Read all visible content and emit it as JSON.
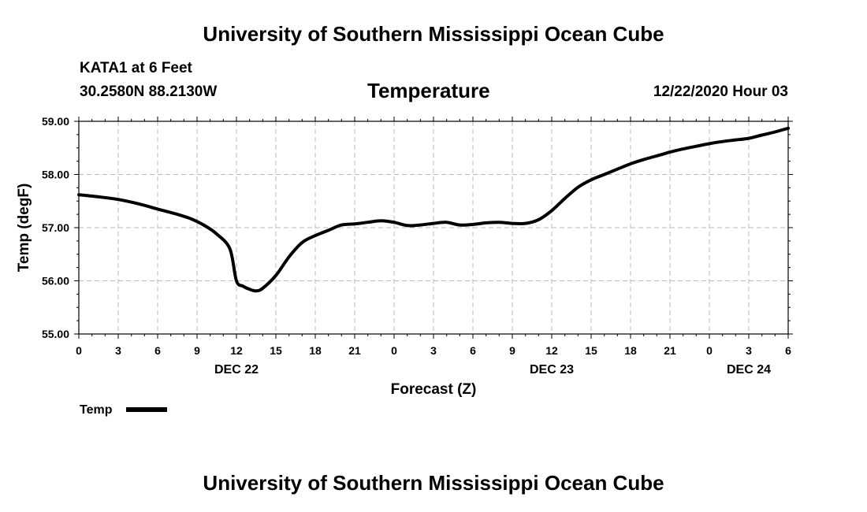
{
  "page": {
    "top_title": "University of Southern Mississippi Ocean Cube",
    "bottom_title": "University of Southern Mississippi Ocean Cube",
    "station": "KATA1 at 6 Feet",
    "coords": "30.2580N 88.2130W",
    "run_time": "12/22/2020 Hour 03"
  },
  "chart_data": {
    "type": "line",
    "title": "Temperature",
    "xlabel": "Forecast (Z)",
    "ylabel": "Temp (degF)",
    "xlim": [
      0,
      54
    ],
    "ylim": [
      55,
      59
    ],
    "grid": true,
    "y_ticks": [
      "55.00",
      "56.00",
      "57.00",
      "58.00",
      "59.00"
    ],
    "x_tick_labels": [
      "0",
      "3",
      "6",
      "9",
      "12",
      "15",
      "18",
      "21",
      "0",
      "3",
      "6",
      "9",
      "12",
      "15",
      "18",
      "21",
      "0",
      "3",
      "6"
    ],
    "date_labels": [
      {
        "label": "DEC 22",
        "hour": 12
      },
      {
        "label": "DEC 23",
        "hour": 36
      },
      {
        "label": "DEC 24",
        "hour": 51
      }
    ],
    "legend": {
      "label": "Temp",
      "placement": "bottom-left"
    },
    "series": [
      {
        "name": "Temp",
        "color": "#000000",
        "x": [
          0,
          1.5,
          3,
          4.5,
          6,
          7.5,
          8.5,
          9.5,
          10.5,
          11.5,
          12,
          12.5,
          13,
          13.5,
          14,
          15,
          16,
          17,
          18,
          19,
          20,
          21,
          22,
          23,
          24,
          25,
          26,
          27,
          28,
          29,
          30,
          31,
          32,
          33,
          34,
          35,
          36,
          37,
          38,
          39,
          40,
          41,
          42,
          43,
          44,
          45,
          46,
          47,
          48,
          49,
          50,
          51,
          52,
          53,
          54
        ],
        "values": [
          57.62,
          57.58,
          57.53,
          57.45,
          57.35,
          57.25,
          57.17,
          57.05,
          56.88,
          56.6,
          56.0,
          55.9,
          55.84,
          55.81,
          55.86,
          56.1,
          56.45,
          56.72,
          56.85,
          56.95,
          57.05,
          57.07,
          57.1,
          57.13,
          57.1,
          57.04,
          57.05,
          57.08,
          57.1,
          57.05,
          57.06,
          57.09,
          57.1,
          57.08,
          57.08,
          57.15,
          57.32,
          57.55,
          57.76,
          57.9,
          58.0,
          58.1,
          58.2,
          58.28,
          58.35,
          58.42,
          58.48,
          58.53,
          58.58,
          58.62,
          58.65,
          58.68,
          58.74,
          58.8,
          58.87
        ]
      }
    ]
  }
}
